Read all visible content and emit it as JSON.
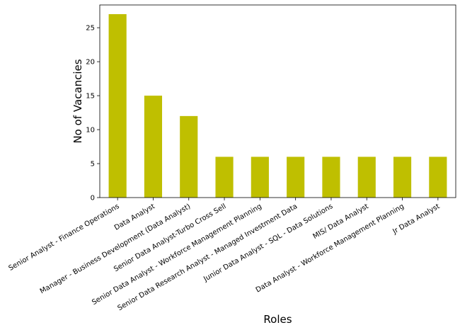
{
  "chart_data": {
    "type": "bar",
    "title": "",
    "xlabel": "Roles",
    "ylabel": "No of Vacancies",
    "categories": [
      "Senior Analyst - Finance Operations",
      "Data Analyst",
      "Manager - Business Development (Data Analyst)",
      "Senior Data Analyst-Turbo Cross Sell",
      "Senior Data Analyst - Workforce Management Planning",
      "Senior Data Research Analyst - Managed Investment Data",
      "Junior Data Analyst - SQL - Data Solutions",
      "MIS/ Data Analyst",
      "Data Analyst - Workforce Management Planning",
      "Jr Data Analyst"
    ],
    "values": [
      27,
      15,
      12,
      6,
      6,
      6,
      6,
      6,
      6,
      6
    ],
    "ylim": [
      0,
      28.35
    ],
    "yticks": [
      0,
      5,
      10,
      15,
      20,
      25
    ],
    "grid": false,
    "legend": "none",
    "colors": {
      "bar": "#bfbf00",
      "axis": "#000000",
      "background": "#ffffff"
    }
  }
}
